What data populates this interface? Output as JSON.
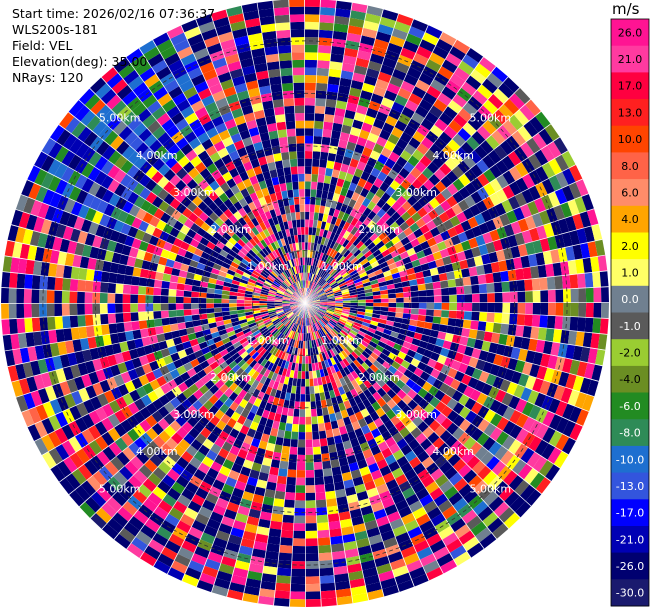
{
  "info": {
    "start_time": "Start time: 2026/02/16 07:36:37",
    "site": "WLS200s-181",
    "field": "Field: VEL",
    "elevation": "Elevation(deg): 35.00",
    "nrays": "NRays: 120"
  },
  "colorbar": {
    "unit": "m/s",
    "ticks": [
      "26.0",
      "21.0",
      "17.0",
      "13.0",
      "10.0",
      "8.0",
      "6.0",
      "4.0",
      "2.0",
      "1.0",
      "0.0",
      "-1.0",
      "-2.0",
      "-4.0",
      "-6.0",
      "-8.0",
      "-10.0",
      "-13.0",
      "-17.0",
      "-21.0",
      "-26.0",
      "-30.0"
    ],
    "colors": [
      "#ff1493",
      "#ff3aa0",
      "#ff0040",
      "#ff2020",
      "#ff4500",
      "#ff6347",
      "#ff8c69",
      "#ffa500",
      "#ffff00",
      "#ffff66",
      "#708090",
      "#5a5a5a",
      "#9acd32",
      "#6b8e23",
      "#228b22",
      "#2e8b57",
      "#1e6fd0",
      "#3355dd",
      "#0000ff",
      "#0000b4",
      "#000070",
      "#1a1a6e"
    ]
  },
  "chart_data": {
    "type": "heatmap",
    "projection": "polar PPI",
    "field": "VEL",
    "units": "m/s",
    "nrays": 120,
    "range_rings_km": [
      1,
      2,
      3,
      4,
      5
    ],
    "ring_labels": [
      "1.00km",
      "2.00km",
      "3.00km",
      "4.00km",
      "5.00km"
    ],
    "color_range": [
      -30.0,
      26.0
    ]
  }
}
